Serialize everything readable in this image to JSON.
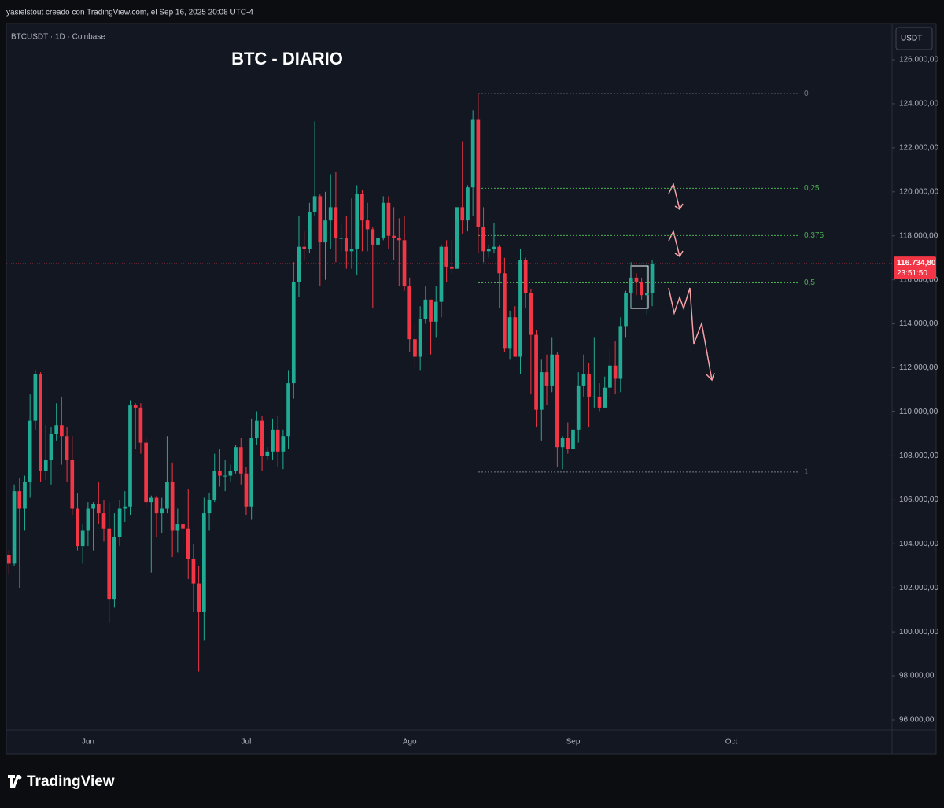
{
  "header": {
    "credit": "yasielstout creado con TradingView.com, el Sep 16, 2025 20:08 UTC-4"
  },
  "footer": {
    "logo": "TradingView"
  },
  "chart_data": {
    "type": "candlestick",
    "title": "BTC - DIARIO",
    "symbol": "BTCUSDT · 1D · Coinbase",
    "currency": "USDT",
    "up_color": "#22ab94",
    "down_color": "#f23645",
    "categories": [
      null,
      null,
      null,
      null,
      null,
      null,
      null,
      null,
      null,
      null,
      null,
      null,
      null,
      null,
      null,
      "Jun",
      null,
      null,
      null,
      null,
      null,
      null,
      null,
      null,
      null,
      null,
      null,
      null,
      null,
      null,
      null,
      null,
      null,
      null,
      null,
      null,
      null,
      null,
      null,
      null,
      null,
      null,
      null,
      null,
      null,
      "Jul",
      null,
      null,
      null,
      null,
      null,
      null,
      null,
      null,
      null,
      null,
      null,
      null,
      null,
      null,
      null,
      null,
      null,
      null,
      null,
      null,
      null,
      null,
      null,
      null,
      null,
      null,
      null,
      null,
      null,
      null,
      "Ago",
      null,
      null,
      null,
      null,
      null,
      null,
      null,
      null,
      null,
      null,
      null,
      null,
      null,
      null,
      null,
      null,
      null,
      null,
      null,
      null,
      null,
      null,
      null,
      null,
      null,
      null,
      null,
      null,
      null,
      null,
      "Sep",
      null,
      null,
      null,
      null,
      null,
      null,
      null,
      null,
      null,
      null,
      null,
      null,
      null,
      null,
      null,
      null,
      null,
      null,
      null,
      null,
      null,
      null,
      null,
      null,
      null,
      null,
      null,
      null,
      null,
      "Oct",
      null,
      null,
      null,
      null,
      null,
      null,
      null,
      null,
      null,
      null,
      null,
      null,
      null,
      null,
      null,
      null,
      null,
      null,
      null,
      null,
      null,
      null,
      null,
      null,
      null,
      null,
      null,
      null,
      null,
      null
    ],
    "open": [
      103500,
      103100,
      106400,
      105600,
      106800,
      109600,
      111700,
      107300,
      107800,
      109000,
      109400,
      108900,
      107800,
      105600,
      103900,
      104600,
      105600,
      105800,
      105400,
      104700,
      101500,
      104300,
      105600,
      105700,
      110300,
      110200,
      108600,
      105900,
      106100,
      105400,
      105600,
      106800,
      104600,
      104900,
      104700,
      103300,
      102200,
      100900,
      105400,
      106000,
      107300,
      107100,
      107100,
      107300,
      108400,
      107200,
      105700,
      108800,
      109600,
      108000,
      108200,
      109200,
      108200,
      108900,
      111300,
      115900,
      117500,
      117400,
      119100,
      119800,
      117700,
      118700,
      119300,
      117900,
      117900,
      117300,
      117400,
      119900,
      118700,
      118300,
      117600,
      117900,
      119500,
      118000,
      117900,
      117800,
      115700,
      113300,
      112500,
      114200,
      115100,
      114100,
      115000,
      117500,
      116600,
      116500,
      119300,
      118700,
      120200,
      123300,
      118400,
      117300,
      117400,
      117500,
      116300,
      112900,
      114300,
      112500,
      116900,
      115400,
      113500,
      110100,
      111800,
      111200,
      112600,
      108400,
      108800,
      108300,
      109200,
      111200,
      111700,
      110700,
      110700,
      110200,
      111100,
      112100,
      111500,
      113900,
      115400,
      116100,
      115900,
      115300,
      115400,
      null,
      null,
      null,
      null,
      null,
      null,
      null,
      null,
      null,
      null,
      null,
      null,
      null,
      null,
      null,
      null,
      null,
      null,
      null,
      null,
      null,
      null,
      null,
      null,
      null,
      null,
      null,
      null,
      null,
      null,
      null,
      null,
      null,
      null,
      null,
      null,
      null,
      null,
      null,
      null,
      null,
      null,
      null,
      null,
      null
    ],
    "high": [
      103700,
      106700,
      107000,
      107100,
      110800,
      111900,
      111800,
      109400,
      109300,
      110400,
      110700,
      109300,
      108900,
      106300,
      104900,
      105900,
      105900,
      106800,
      106000,
      105900,
      105400,
      106000,
      106400,
      110500,
      110400,
      110400,
      108800,
      106200,
      106200,
      106100,
      108900,
      107700,
      105600,
      105200,
      106500,
      104000,
      103000,
      106100,
      106300,
      108100,
      108300,
      107800,
      107600,
      108500,
      108800,
      107500,
      109700,
      110000,
      109800,
      108400,
      109700,
      109800,
      109200,
      111900,
      116800,
      118900,
      118200,
      119500,
      123200,
      119900,
      120000,
      120800,
      120900,
      118600,
      118900,
      119700,
      120300,
      120100,
      119500,
      118400,
      118300,
      119800,
      119800,
      119300,
      118800,
      118900,
      116100,
      114000,
      114800,
      115700,
      115100,
      115700,
      117600,
      117800,
      117800,
      119300,
      122300,
      120300,
      123700,
      124457,
      119300,
      117600,
      118600,
      117600,
      117000,
      114600,
      114800,
      117400,
      117000,
      115600,
      113700,
      112400,
      112600,
      113400,
      112700,
      108900,
      109500,
      109900,
      111800,
      112600,
      112200,
      113400,
      111300,
      111600,
      112900,
      113200,
      114300,
      115500,
      116800,
      116300,
      116100,
      116800,
      116900,
      null,
      null,
      null,
      null,
      null,
      null,
      null,
      null,
      null,
      null,
      null,
      null,
      null,
      null,
      null,
      null,
      null,
      null,
      null,
      null,
      null,
      null,
      null,
      null,
      null,
      null,
      null,
      null,
      null,
      null,
      null,
      null,
      null,
      null,
      null,
      null,
      null,
      null,
      null,
      null,
      null,
      null,
      null,
      null,
      null
    ],
    "low": [
      102600,
      103000,
      102000,
      104600,
      106100,
      109200,
      106800,
      106900,
      106700,
      108700,
      107600,
      106800,
      105300,
      103700,
      103100,
      103900,
      103700,
      104900,
      104100,
      100400,
      101100,
      103900,
      105000,
      105300,
      108300,
      108100,
      105700,
      102700,
      104300,
      104500,
      105400,
      103400,
      103600,
      103900,
      102400,
      100900,
      98200,
      99600,
      104600,
      105900,
      106600,
      106400,
      106800,
      107200,
      106700,
      105300,
      105100,
      108500,
      107300,
      107800,
      107800,
      107500,
      107400,
      108300,
      110600,
      115200,
      116900,
      117200,
      118900,
      115700,
      116000,
      117400,
      116800,
      117300,
      116500,
      116500,
      116200,
      117300,
      117300,
      114700,
      117400,
      117800,
      117400,
      116900,
      115700,
      115500,
      112700,
      112000,
      111900,
      114000,
      112600,
      113400,
      114300,
      115900,
      116300,
      116500,
      118100,
      118200,
      118900,
      117200,
      116800,
      117000,
      117200,
      114700,
      112700,
      112400,
      112500,
      111700,
      114700,
      110800,
      109300,
      108700,
      110300,
      110900,
      107500,
      107400,
      108100,
      107270,
      108600,
      110700,
      109300,
      110200,
      110000,
      110200,
      110700,
      110800,
      110900,
      113400,
      114700,
      115300,
      115100,
      114400,
      114800,
      null,
      null,
      null,
      null,
      null,
      null,
      null,
      null,
      null,
      null,
      null,
      null,
      null,
      null,
      null,
      null,
      null,
      null,
      null,
      null,
      null,
      null,
      null,
      null,
      null,
      null,
      null,
      null,
      null,
      null,
      null,
      null,
      null,
      null,
      null,
      null,
      null,
      null,
      null,
      null,
      null,
      null,
      null,
      null,
      null
    ],
    "close": [
      103100,
      106400,
      105600,
      106800,
      109600,
      111700,
      107300,
      107800,
      109000,
      109400,
      108900,
      107800,
      105600,
      103900,
      104600,
      105600,
      105800,
      105400,
      104700,
      101500,
      104300,
      105600,
      105700,
      110300,
      110200,
      108600,
      105900,
      106100,
      105400,
      105600,
      106800,
      104600,
      104900,
      104700,
      103300,
      102200,
      100900,
      105400,
      106000,
      107300,
      107100,
      107100,
      107300,
      108400,
      107200,
      105700,
      108800,
      109600,
      108000,
      108200,
      109200,
      108200,
      108900,
      111300,
      115900,
      117500,
      117400,
      119100,
      119800,
      117700,
      118700,
      119300,
      117900,
      117900,
      117300,
      117400,
      119900,
      118700,
      118300,
      117600,
      117900,
      119500,
      118000,
      117900,
      117800,
      115700,
      113300,
      112500,
      114200,
      115100,
      114100,
      115000,
      117500,
      116600,
      116500,
      119300,
      118700,
      120200,
      123300,
      118400,
      117300,
      117400,
      117500,
      116300,
      112900,
      114300,
      112500,
      116900,
      115400,
      113500,
      110100,
      111800,
      111200,
      112600,
      108400,
      108800,
      108300,
      109200,
      111200,
      111700,
      110700,
      110700,
      110200,
      111100,
      112100,
      111500,
      113900,
      115400,
      116100,
      115900,
      115300,
      115400,
      116734.8,
      null,
      null,
      null,
      null,
      null,
      null,
      null,
      null,
      null,
      null,
      null,
      null,
      null,
      null,
      null,
      null,
      null,
      null,
      null,
      null,
      null,
      null,
      null,
      null,
      null,
      null,
      null,
      null,
      null,
      null,
      null,
      null,
      null,
      null,
      null,
      null,
      null,
      null,
      null,
      null,
      null,
      null,
      null,
      null,
      null
    ],
    "ylim": [
      95535,
      127645
    ],
    "yticks": [
      {
        "value": 96000,
        "label": "96.000,00"
      },
      {
        "value": 98000,
        "label": "98.000,00"
      },
      {
        "value": 100000,
        "label": "100.000,00"
      },
      {
        "value": 102000,
        "label": "102.000,00"
      },
      {
        "value": 104000,
        "label": "104.000,00"
      },
      {
        "value": 106000,
        "label": "106.000,00"
      },
      {
        "value": 108000,
        "label": "108.000,00"
      },
      {
        "value": 110000,
        "label": "110.000,00"
      },
      {
        "value": 112000,
        "label": "112.000,00"
      },
      {
        "value": 114000,
        "label": "114.000,00"
      },
      {
        "value": 116000,
        "label": "116.000,00"
      },
      {
        "value": 118000,
        "label": "118.000,00"
      },
      {
        "value": 120000,
        "label": "120.000,00"
      },
      {
        "value": 122000,
        "label": "122.000,00"
      },
      {
        "value": 124000,
        "label": "124.000,00"
      },
      {
        "value": 126000,
        "label": "126.000,00"
      }
    ],
    "grid": false,
    "current_price": {
      "value": 116734.8,
      "label": "116.734,80"
    },
    "countdown": "23:51:50",
    "current_price_color": "#f23645",
    "fibonacci": {
      "high": 124457,
      "low": 107270,
      "levels": [
        0,
        {
          "value": 0.25,
          "label": "0,25"
        },
        {
          "value": 0.375,
          "label": "0,375"
        },
        {
          "value": 0.5,
          "label": "0,5"
        },
        1
      ],
      "level_colors": [
        "#787b86",
        "#4caf50",
        "#4caf50",
        "#4caf50",
        "#787b86"
      ]
    }
  }
}
